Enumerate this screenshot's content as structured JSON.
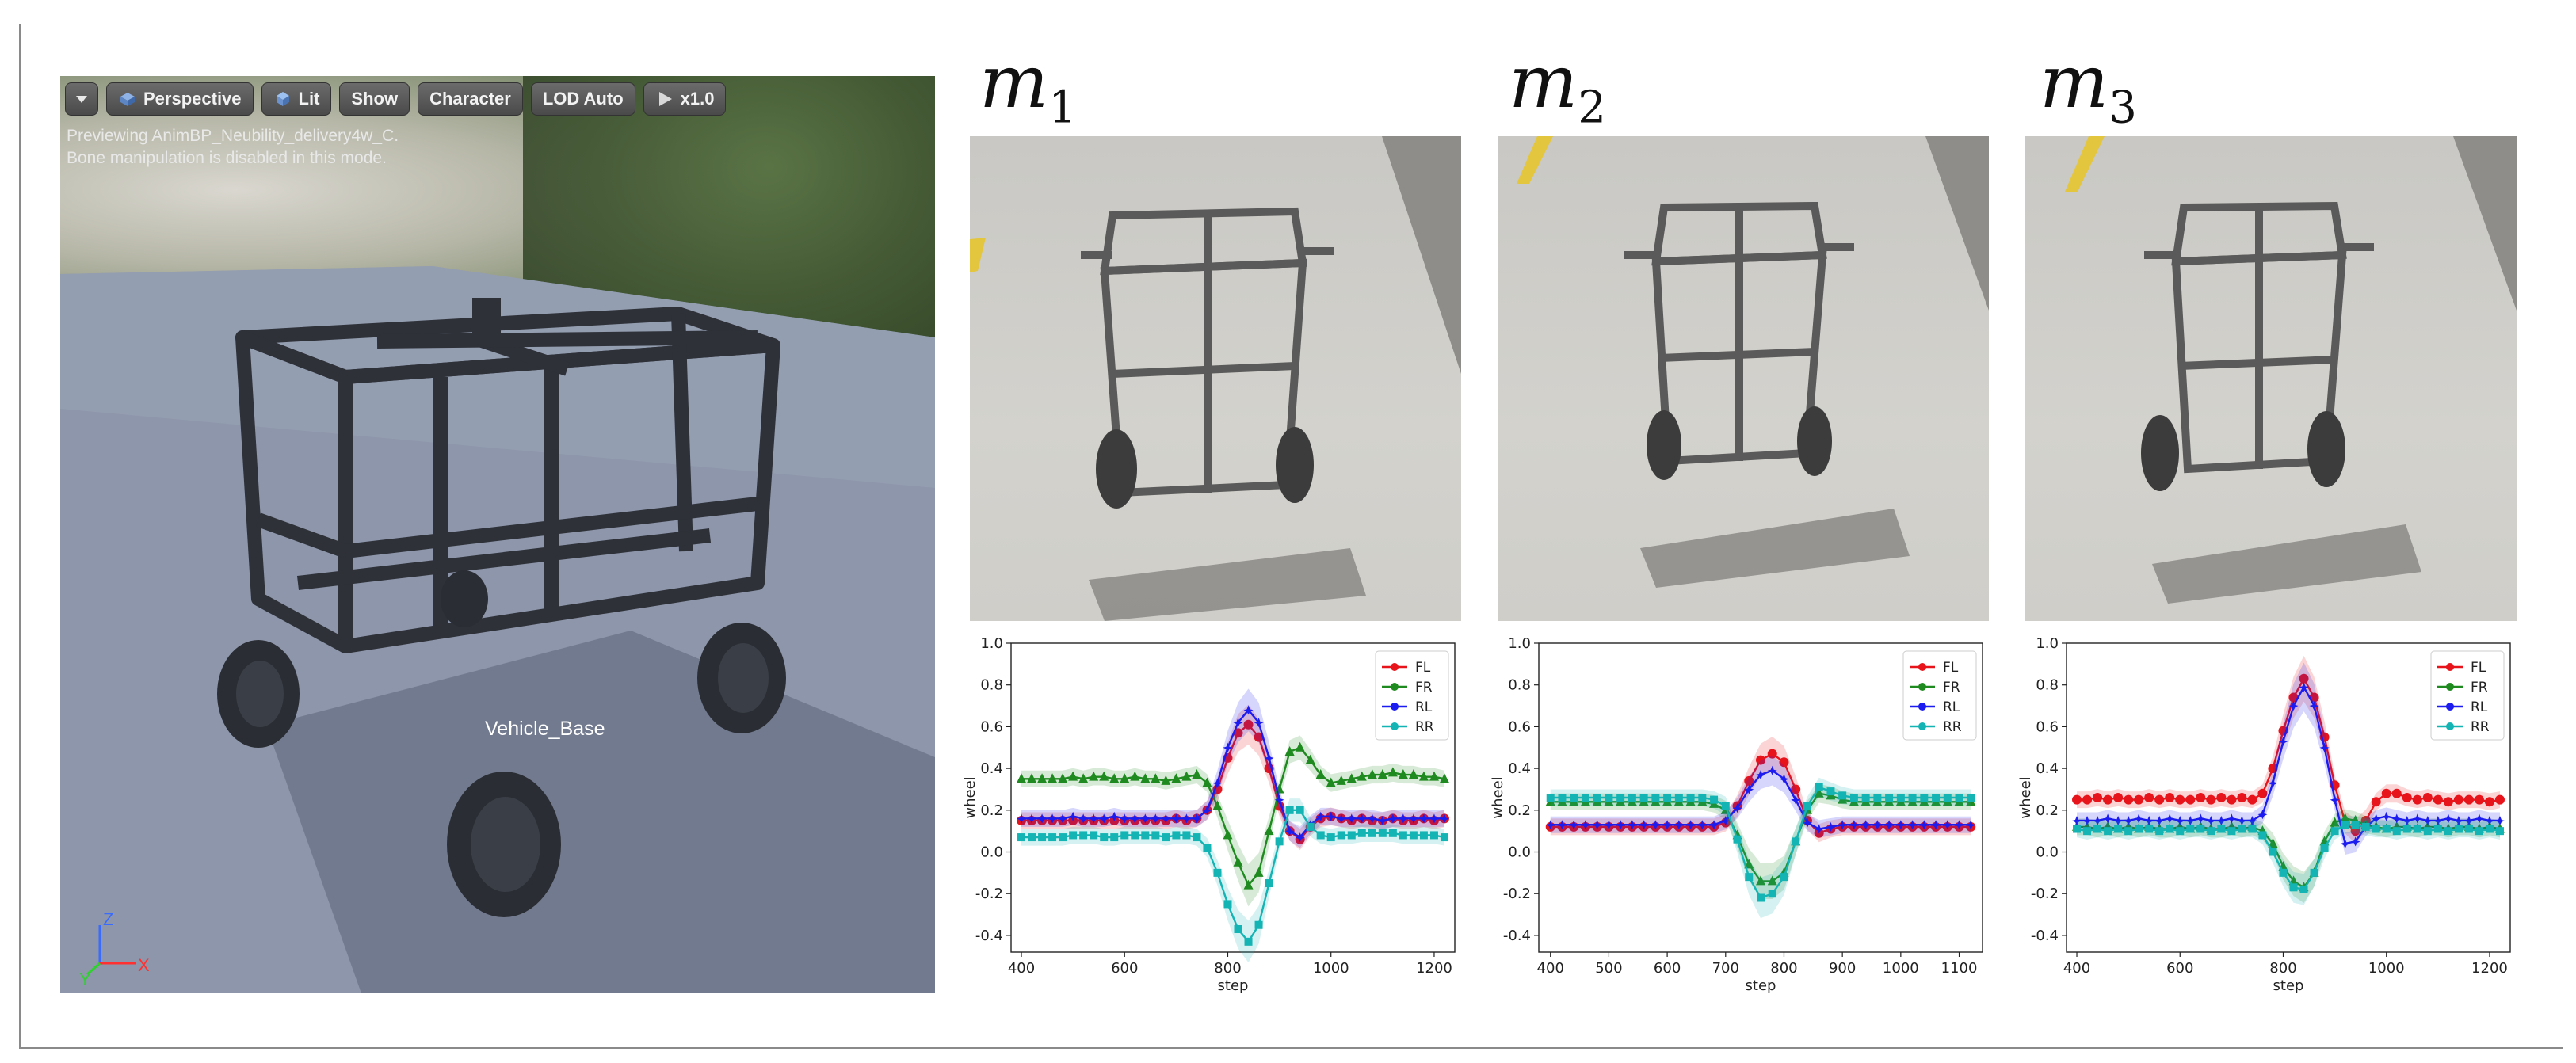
{
  "viewport": {
    "toolbar": {
      "menu_icon": "chevron-down-icon",
      "perspective_label": "Perspective",
      "lit_label": "Lit",
      "show_label": "Show",
      "character_label": "Character",
      "lod_label": "LOD Auto",
      "speed_label": "x1.0"
    },
    "message_line1": "Previewing AnimBP_Neubility_delivery4w_C.",
    "message_line2": "Bone manipulation is disabled in this mode.",
    "bone_label": "Vehicle_Base",
    "axis": {
      "z": "Z",
      "y": "Y",
      "x": "X"
    }
  },
  "panels": [
    {
      "title_base": "m",
      "title_sub": "1"
    },
    {
      "title_base": "m",
      "title_sub": "2"
    },
    {
      "title_base": "m",
      "title_sub": "3"
    }
  ],
  "colors": {
    "FL": "#e8141c",
    "FR": "#1f8a1f",
    "RL": "#1c1cf0",
    "RR": "#14b4b4"
  },
  "chart_data": [
    {
      "type": "line",
      "xlabel": "step",
      "ylabel": "wheel",
      "xlim": [
        380,
        1240
      ],
      "ylim": [
        -0.48,
        1.0
      ],
      "xticks": [
        400,
        600,
        800,
        1000,
        1200
      ],
      "yticks": [
        -0.4,
        -0.2,
        0.0,
        0.2,
        0.4,
        0.6,
        0.8,
        1.0
      ],
      "legend": "top-right",
      "x": [
        400,
        420,
        440,
        460,
        480,
        500,
        520,
        540,
        560,
        580,
        600,
        620,
        640,
        660,
        680,
        700,
        720,
        740,
        760,
        780,
        800,
        820,
        840,
        860,
        880,
        900,
        920,
        940,
        960,
        980,
        1000,
        1020,
        1040,
        1060,
        1080,
        1100,
        1120,
        1140,
        1160,
        1180,
        1200,
        1220
      ],
      "series": [
        {
          "name": "FL",
          "marker": "circle",
          "values": [
            0.15,
            0.15,
            0.15,
            0.15,
            0.15,
            0.15,
            0.15,
            0.15,
            0.15,
            0.15,
            0.15,
            0.15,
            0.15,
            0.15,
            0.15,
            0.16,
            0.15,
            0.16,
            0.2,
            0.3,
            0.45,
            0.57,
            0.61,
            0.55,
            0.4,
            0.22,
            0.1,
            0.06,
            0.12,
            0.16,
            0.17,
            0.16,
            0.15,
            0.16,
            0.15,
            0.15,
            0.16,
            0.15,
            0.15,
            0.16,
            0.15,
            0.16
          ]
        },
        {
          "name": "FR",
          "marker": "triangle",
          "values": [
            0.35,
            0.35,
            0.35,
            0.35,
            0.35,
            0.36,
            0.35,
            0.36,
            0.36,
            0.35,
            0.35,
            0.36,
            0.35,
            0.35,
            0.34,
            0.35,
            0.36,
            0.37,
            0.33,
            0.22,
            0.08,
            -0.05,
            -0.16,
            -0.1,
            0.1,
            0.3,
            0.48,
            0.5,
            0.44,
            0.37,
            0.33,
            0.34,
            0.35,
            0.36,
            0.37,
            0.37,
            0.38,
            0.37,
            0.37,
            0.36,
            0.36,
            0.35
          ]
        },
        {
          "name": "RL",
          "marker": "star",
          "values": [
            0.16,
            0.16,
            0.16,
            0.16,
            0.16,
            0.17,
            0.16,
            0.16,
            0.16,
            0.17,
            0.16,
            0.16,
            0.16,
            0.16,
            0.16,
            0.16,
            0.16,
            0.16,
            0.2,
            0.33,
            0.5,
            0.62,
            0.68,
            0.62,
            0.45,
            0.25,
            0.1,
            0.07,
            0.13,
            0.17,
            0.17,
            0.16,
            0.16,
            0.16,
            0.16,
            0.15,
            0.16,
            0.16,
            0.16,
            0.16,
            0.16,
            0.16
          ]
        },
        {
          "name": "RR",
          "marker": "square",
          "values": [
            0.07,
            0.07,
            0.07,
            0.07,
            0.07,
            0.08,
            0.08,
            0.08,
            0.07,
            0.07,
            0.08,
            0.08,
            0.08,
            0.08,
            0.07,
            0.08,
            0.08,
            0.07,
            0.02,
            -0.1,
            -0.25,
            -0.37,
            -0.43,
            -0.35,
            -0.15,
            0.05,
            0.2,
            0.2,
            0.12,
            0.08,
            0.07,
            0.08,
            0.08,
            0.09,
            0.09,
            0.09,
            0.09,
            0.08,
            0.08,
            0.08,
            0.08,
            0.07
          ]
        }
      ]
    },
    {
      "type": "line",
      "xlabel": "step",
      "ylabel": "wheel",
      "xlim": [
        380,
        1140
      ],
      "ylim": [
        -0.48,
        1.0
      ],
      "xticks": [
        400,
        500,
        600,
        700,
        800,
        900,
        1000,
        1100
      ],
      "yticks": [
        -0.4,
        -0.2,
        0.0,
        0.2,
        0.4,
        0.6,
        0.8,
        1.0
      ],
      "legend": "top-right",
      "x": [
        400,
        420,
        440,
        460,
        480,
        500,
        520,
        540,
        560,
        580,
        600,
        620,
        640,
        660,
        680,
        700,
        720,
        740,
        760,
        780,
        800,
        820,
        840,
        860,
        880,
        900,
        920,
        940,
        960,
        980,
        1000,
        1020,
        1040,
        1060,
        1080,
        1100,
        1120
      ],
      "series": [
        {
          "name": "FL",
          "marker": "circle",
          "values": [
            0.12,
            0.12,
            0.12,
            0.12,
            0.12,
            0.12,
            0.12,
            0.12,
            0.12,
            0.12,
            0.12,
            0.12,
            0.12,
            0.12,
            0.12,
            0.14,
            0.22,
            0.34,
            0.44,
            0.47,
            0.43,
            0.3,
            0.15,
            0.09,
            0.11,
            0.12,
            0.12,
            0.12,
            0.12,
            0.12,
            0.12,
            0.12,
            0.12,
            0.12,
            0.12,
            0.12,
            0.12
          ]
        },
        {
          "name": "FR",
          "marker": "triangle",
          "values": [
            0.24,
            0.24,
            0.24,
            0.24,
            0.24,
            0.24,
            0.24,
            0.24,
            0.24,
            0.24,
            0.24,
            0.24,
            0.24,
            0.24,
            0.23,
            0.2,
            0.08,
            -0.06,
            -0.14,
            -0.14,
            -0.1,
            0.05,
            0.2,
            0.28,
            0.27,
            0.25,
            0.24,
            0.24,
            0.24,
            0.24,
            0.24,
            0.24,
            0.24,
            0.24,
            0.24,
            0.24,
            0.24
          ]
        },
        {
          "name": "RL",
          "marker": "star",
          "values": [
            0.13,
            0.13,
            0.13,
            0.13,
            0.13,
            0.13,
            0.13,
            0.13,
            0.13,
            0.13,
            0.13,
            0.13,
            0.13,
            0.13,
            0.13,
            0.15,
            0.21,
            0.3,
            0.37,
            0.39,
            0.35,
            0.25,
            0.14,
            0.11,
            0.12,
            0.13,
            0.13,
            0.13,
            0.13,
            0.13,
            0.13,
            0.13,
            0.13,
            0.13,
            0.13,
            0.13,
            0.13
          ]
        },
        {
          "name": "RR",
          "marker": "square",
          "values": [
            0.26,
            0.26,
            0.26,
            0.26,
            0.26,
            0.26,
            0.26,
            0.26,
            0.26,
            0.26,
            0.26,
            0.26,
            0.26,
            0.26,
            0.25,
            0.22,
            0.06,
            -0.12,
            -0.22,
            -0.2,
            -0.12,
            0.05,
            0.22,
            0.31,
            0.29,
            0.27,
            0.26,
            0.26,
            0.26,
            0.26,
            0.26,
            0.26,
            0.26,
            0.26,
            0.26,
            0.26,
            0.26
          ]
        }
      ]
    },
    {
      "type": "line",
      "xlabel": "step",
      "ylabel": "wheel",
      "xlim": [
        380,
        1240
      ],
      "ylim": [
        -0.48,
        1.0
      ],
      "xticks": [
        400,
        600,
        800,
        1000,
        1200
      ],
      "yticks": [
        -0.4,
        -0.2,
        0.0,
        0.2,
        0.4,
        0.6,
        0.8,
        1.0
      ],
      "legend": "top-right",
      "x": [
        400,
        420,
        440,
        460,
        480,
        500,
        520,
        540,
        560,
        580,
        600,
        620,
        640,
        660,
        680,
        700,
        720,
        740,
        760,
        780,
        800,
        820,
        840,
        860,
        880,
        900,
        920,
        940,
        960,
        980,
        1000,
        1020,
        1040,
        1060,
        1080,
        1100,
        1120,
        1140,
        1160,
        1180,
        1200,
        1220
      ],
      "series": [
        {
          "name": "FL",
          "marker": "circle",
          "values": [
            0.25,
            0.25,
            0.26,
            0.25,
            0.26,
            0.25,
            0.25,
            0.26,
            0.25,
            0.26,
            0.25,
            0.25,
            0.26,
            0.25,
            0.26,
            0.25,
            0.26,
            0.25,
            0.28,
            0.4,
            0.58,
            0.74,
            0.83,
            0.74,
            0.55,
            0.32,
            0.14,
            0.1,
            0.15,
            0.24,
            0.28,
            0.28,
            0.26,
            0.25,
            0.26,
            0.25,
            0.24,
            0.25,
            0.25,
            0.25,
            0.24,
            0.25
          ]
        },
        {
          "name": "FR",
          "marker": "triangle",
          "values": [
            0.12,
            0.12,
            0.11,
            0.12,
            0.11,
            0.12,
            0.11,
            0.12,
            0.11,
            0.11,
            0.12,
            0.11,
            0.12,
            0.11,
            0.11,
            0.12,
            0.11,
            0.12,
            0.1,
            0.04,
            -0.07,
            -0.14,
            -0.17,
            -0.1,
            0.05,
            0.14,
            0.16,
            0.15,
            0.13,
            0.12,
            0.11,
            0.12,
            0.12,
            0.11,
            0.12,
            0.12,
            0.11,
            0.12,
            0.12,
            0.11,
            0.12,
            0.11
          ]
        },
        {
          "name": "RL",
          "marker": "star",
          "values": [
            0.15,
            0.15,
            0.15,
            0.16,
            0.15,
            0.15,
            0.16,
            0.15,
            0.15,
            0.16,
            0.15,
            0.15,
            0.16,
            0.15,
            0.15,
            0.16,
            0.15,
            0.15,
            0.18,
            0.33,
            0.53,
            0.7,
            0.79,
            0.7,
            0.5,
            0.25,
            0.04,
            0.05,
            0.12,
            0.16,
            0.17,
            0.16,
            0.15,
            0.16,
            0.15,
            0.15,
            0.16,
            0.15,
            0.15,
            0.16,
            0.15,
            0.15
          ]
        },
        {
          "name": "RR",
          "marker": "square",
          "values": [
            0.11,
            0.1,
            0.11,
            0.1,
            0.11,
            0.1,
            0.11,
            0.11,
            0.1,
            0.11,
            0.1,
            0.11,
            0.11,
            0.1,
            0.11,
            0.1,
            0.11,
            0.11,
            0.08,
            0.0,
            -0.1,
            -0.17,
            -0.18,
            -0.1,
            0.02,
            0.1,
            0.13,
            0.13,
            0.12,
            0.11,
            0.11,
            0.1,
            0.11,
            0.11,
            0.1,
            0.11,
            0.1,
            0.11,
            0.11,
            0.1,
            0.11,
            0.1
          ]
        }
      ]
    }
  ]
}
